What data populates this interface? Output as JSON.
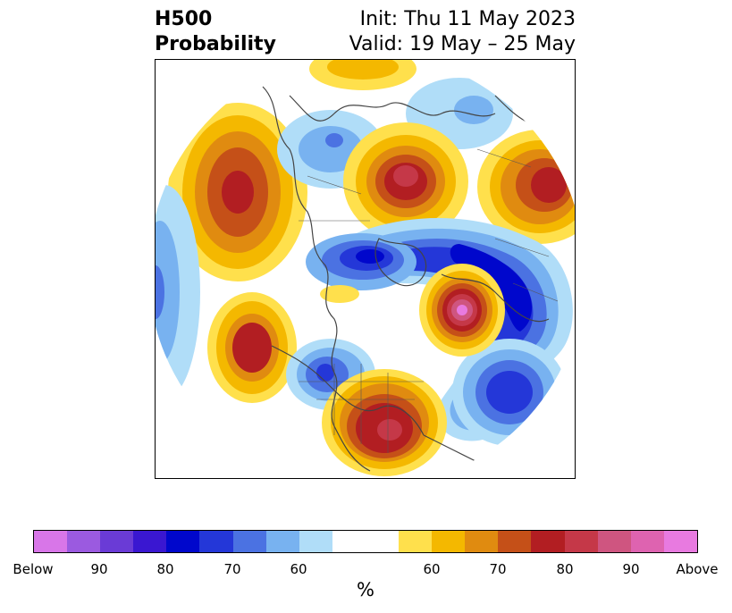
{
  "title": {
    "left_line1": "H500",
    "left_line2": "Probability",
    "right_line1": "Init: Thu 11 May 2023",
    "right_line2": "Valid: 19 May – 25 May"
  },
  "colorbar": {
    "unit": "%",
    "below_colors": [
      "#d876e8",
      "#9b5ae0",
      "#6a3bd6",
      "#3a17d1",
      "#0007cc",
      "#2437d8",
      "#4b72e2",
      "#78b2f0",
      "#b0ddf8"
    ],
    "neutral_color": "#ffffff",
    "above_colors": [
      "#ffe04c",
      "#f4b800",
      "#e08b10",
      "#c55018",
      "#b21e22",
      "#c53848",
      "#cf5580",
      "#de63b0",
      "#e87ae0"
    ],
    "ticks": [
      "Below",
      "90",
      "80",
      "70",
      "60",
      "60",
      "70",
      "80",
      "90",
      "Above"
    ]
  }
}
